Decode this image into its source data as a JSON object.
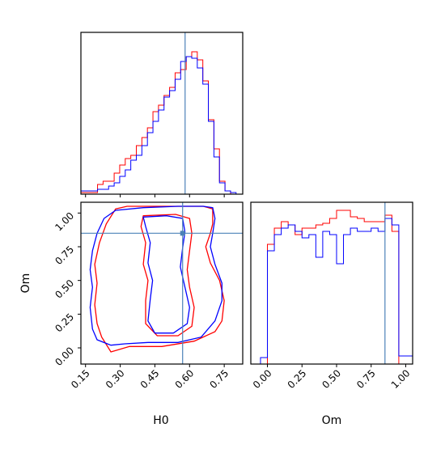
{
  "chart_data": [
    {
      "type": "histogram",
      "panel": "H0 marginal",
      "x": [
        0.1,
        0.125,
        0.15,
        0.175,
        0.2,
        0.225,
        0.25,
        0.275,
        0.3,
        0.325,
        0.35,
        0.375,
        0.4,
        0.425,
        0.45,
        0.475,
        0.5,
        0.525,
        0.55,
        0.575,
        0.6,
        0.625,
        0.65,
        0.675,
        0.7,
        0.725,
        0.75,
        0.775,
        0.8,
        0.825
      ],
      "xlim": [
        0.1,
        0.83
      ],
      "ylim": [
        0,
        1.0
      ],
      "truth_line_x": 0.57,
      "series": [
        {
          "color": "#ff0000",
          "values": [
            0.01,
            0.01,
            0.01,
            0.06,
            0.08,
            0.08,
            0.13,
            0.18,
            0.22,
            0.24,
            0.3,
            0.35,
            0.41,
            0.51,
            0.55,
            0.61,
            0.66,
            0.75,
            0.77,
            0.85,
            0.88,
            0.83,
            0.7,
            0.46,
            0.28,
            0.08,
            0.02,
            0.0,
            0.0
          ]
        },
        {
          "color": "#0000ff",
          "values": [
            0.02,
            0.02,
            0.02,
            0.03,
            0.03,
            0.05,
            0.07,
            0.11,
            0.15,
            0.21,
            0.24,
            0.3,
            0.38,
            0.45,
            0.52,
            0.6,
            0.64,
            0.71,
            0.82,
            0.85,
            0.84,
            0.78,
            0.68,
            0.45,
            0.23,
            0.07,
            0.02,
            0.01,
            0.0
          ]
        }
      ]
    },
    {
      "type": "contour",
      "panel": "H0 vs Om",
      "xlabel": "H0",
      "ylabel": "Om",
      "xlim": [
        0.13,
        0.83
      ],
      "ylim": [
        -0.12,
        1.08
      ],
      "xticks": [
        "0.15",
        "0.30",
        "0.45",
        "0.60",
        "0.75"
      ],
      "xtick_values": [
        0.15,
        0.3,
        0.45,
        0.6,
        0.75
      ],
      "yticks": [
        "0.00",
        "0.25",
        "0.50",
        "0.75",
        "1.00"
      ],
      "ytick_values": [
        0.0,
        0.25,
        0.5,
        0.75,
        1.0
      ],
      "truth_point": [
        0.57,
        0.85
      ],
      "series": [
        {
          "color": "#ff0000",
          "contours": [
            [
              [
                0.28,
                1.03
              ],
              [
                0.33,
                1.05
              ],
              [
                0.45,
                1.05
              ],
              [
                0.57,
                1.05
              ],
              [
                0.66,
                1.05
              ],
              [
                0.7,
                1.03
              ],
              [
                0.7,
                0.92
              ],
              [
                0.69,
                0.85
              ],
              [
                0.67,
                0.75
              ],
              [
                0.69,
                0.63
              ],
              [
                0.73,
                0.5
              ],
              [
                0.75,
                0.35
              ],
              [
                0.74,
                0.2
              ],
              [
                0.71,
                0.12
              ],
              [
                0.62,
                0.05
              ],
              [
                0.48,
                0.01
              ],
              [
                0.34,
                0.01
              ],
              [
                0.26,
                -0.03
              ],
              [
                0.22,
                0.08
              ],
              [
                0.2,
                0.18
              ],
              [
                0.19,
                0.32
              ],
              [
                0.2,
                0.48
              ],
              [
                0.19,
                0.62
              ],
              [
                0.21,
                0.78
              ],
              [
                0.24,
                0.92
              ],
              [
                0.28,
                1.03
              ]
            ],
            [
              [
                0.4,
                0.98
              ],
              [
                0.54,
                0.99
              ],
              [
                0.6,
                0.96
              ],
              [
                0.61,
                0.85
              ],
              [
                0.6,
                0.72
              ],
              [
                0.59,
                0.58
              ],
              [
                0.6,
                0.45
              ],
              [
                0.62,
                0.3
              ],
              [
                0.61,
                0.16
              ],
              [
                0.55,
                0.09
              ],
              [
                0.46,
                0.09
              ],
              [
                0.41,
                0.18
              ],
              [
                0.41,
                0.35
              ],
              [
                0.42,
                0.5
              ],
              [
                0.4,
                0.62
              ],
              [
                0.41,
                0.78
              ],
              [
                0.39,
                0.9
              ],
              [
                0.4,
                0.98
              ]
            ]
          ]
        },
        {
          "color": "#0000ff",
          "contours": [
            [
              [
                0.28,
                1.02
              ],
              [
                0.4,
                1.04
              ],
              [
                0.55,
                1.05
              ],
              [
                0.66,
                1.05
              ],
              [
                0.7,
                1.04
              ],
              [
                0.71,
                0.96
              ],
              [
                0.7,
                0.85
              ],
              [
                0.69,
                0.75
              ],
              [
                0.71,
                0.62
              ],
              [
                0.74,
                0.48
              ],
              [
                0.74,
                0.35
              ],
              [
                0.71,
                0.2
              ],
              [
                0.65,
                0.08
              ],
              [
                0.55,
                0.04
              ],
              [
                0.42,
                0.04
              ],
              [
                0.32,
                0.03
              ],
              [
                0.26,
                0.02
              ],
              [
                0.2,
                0.06
              ],
              [
                0.18,
                0.14
              ],
              [
                0.17,
                0.3
              ],
              [
                0.18,
                0.45
              ],
              [
                0.17,
                0.58
              ],
              [
                0.18,
                0.72
              ],
              [
                0.2,
                0.85
              ],
              [
                0.23,
                0.96
              ],
              [
                0.28,
                1.02
              ]
            ],
            [
              [
                0.4,
                0.97
              ],
              [
                0.5,
                0.98
              ],
              [
                0.57,
                0.96
              ],
              [
                0.58,
                0.86
              ],
              [
                0.57,
                0.74
              ],
              [
                0.56,
                0.6
              ],
              [
                0.58,
                0.45
              ],
              [
                0.6,
                0.3
              ],
              [
                0.59,
                0.18
              ],
              [
                0.53,
                0.11
              ],
              [
                0.45,
                0.11
              ],
              [
                0.42,
                0.2
              ],
              [
                0.43,
                0.36
              ],
              [
                0.44,
                0.5
              ],
              [
                0.42,
                0.63
              ],
              [
                0.43,
                0.78
              ],
              [
                0.41,
                0.9
              ],
              [
                0.4,
                0.97
              ]
            ]
          ]
        }
      ]
    },
    {
      "type": "histogram",
      "panel": "Om marginal",
      "xlabel": "Om",
      "x": [
        -0.1,
        -0.05,
        0.0,
        0.05,
        0.1,
        0.15,
        0.2,
        0.25,
        0.3,
        0.35,
        0.4,
        0.45,
        0.5,
        0.55,
        0.6,
        0.65,
        0.7,
        0.75,
        0.8,
        0.85,
        0.9,
        0.95,
        1.0,
        1.05
      ],
      "xlim": [
        -0.12,
        1.05
      ],
      "ylim": [
        0,
        1.0
      ],
      "xticks": [
        "0.00",
        "0.25",
        "0.50",
        "0.75",
        "1.00"
      ],
      "xtick_values": [
        0.0,
        0.25,
        0.5,
        0.75,
        1.0
      ],
      "truth_line_x": 0.85,
      "series": [
        {
          "color": "#ff0000",
          "values": [
            0.0,
            0.0,
            0.74,
            0.84,
            0.88,
            0.86,
            0.8,
            0.84,
            0.84,
            0.86,
            0.87,
            0.9,
            0.95,
            0.95,
            0.91,
            0.9,
            0.88,
            0.88,
            0.88,
            0.92,
            0.82,
            0.0,
            0.0
          ]
        },
        {
          "color": "#0000ff",
          "values": [
            0.0,
            0.04,
            0.7,
            0.8,
            0.84,
            0.86,
            0.82,
            0.78,
            0.8,
            0.66,
            0.82,
            0.8,
            0.62,
            0.8,
            0.84,
            0.82,
            0.82,
            0.84,
            0.82,
            0.9,
            0.86,
            0.05,
            0.05
          ]
        }
      ]
    }
  ]
}
